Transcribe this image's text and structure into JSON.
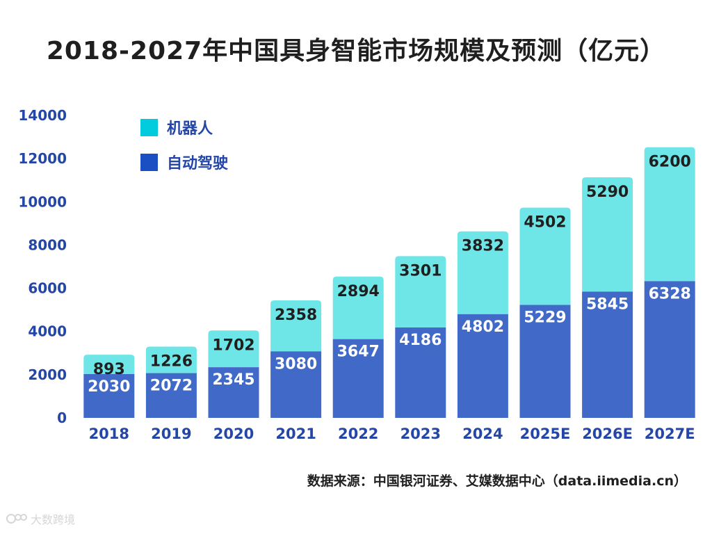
{
  "chart_data": {
    "type": "bar",
    "stacked": true,
    "title": "2018-2027年中国具身智能市场规模及预测（亿元）",
    "categories": [
      "2018",
      "2019",
      "2020",
      "2021",
      "2022",
      "2023",
      "2024",
      "2025E",
      "2026E",
      "2027E"
    ],
    "series": [
      {
        "name": "自动驾驶",
        "color": "#4169c8",
        "values": [
          2030,
          2072,
          2345,
          3080,
          3647,
          4186,
          4802,
          5229,
          5845,
          6328
        ]
      },
      {
        "name": "机器人",
        "color": "#6ee6e8",
        "values": [
          893,
          1226,
          1702,
          2358,
          2894,
          3301,
          3832,
          4502,
          5290,
          6200
        ]
      }
    ],
    "yticks": [
      "0",
      "2000",
      "4000",
      "6000",
      "8000",
      "10000",
      "12000",
      "14000"
    ],
    "ylim": [
      0,
      14000
    ],
    "legend": [
      {
        "label": "机器人",
        "color": "#00ccdd"
      },
      {
        "label": "自动驾驶",
        "color": "#1a4fc4"
      }
    ],
    "legend_position": "top-left",
    "grid": false
  },
  "source": "数据来源：中国银河证券、艾媒数据中心（data.iimedia.cn）",
  "watermark": "大数跨境",
  "colors": {
    "axis_text": "#2446a6",
    "inner_label": "#ffffff",
    "top_label": "#1f1f1f"
  }
}
